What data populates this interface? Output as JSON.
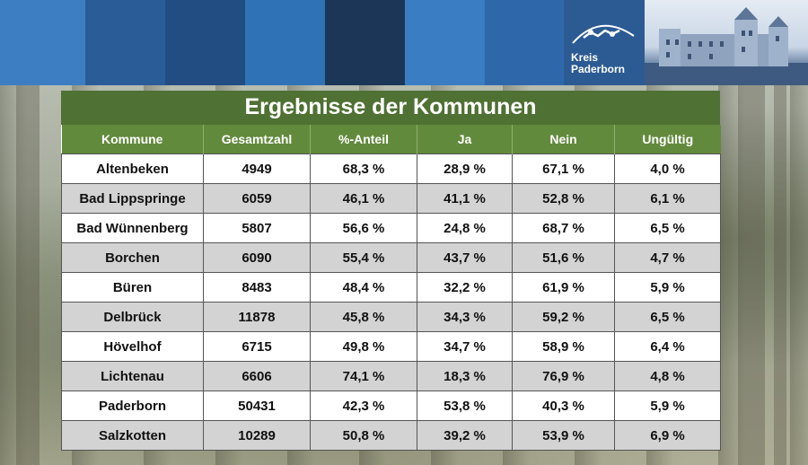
{
  "header": {
    "stripe_colors": [
      "#3d7ec2",
      "#2a5c98",
      "#214d82",
      "#2f73b6",
      "#1c3658",
      "#3a7dc2",
      "#2f68aa"
    ],
    "logo_text": "Kreis\nPaderborn",
    "logo_bg": "#2c5b94"
  },
  "title": "Ergebnisse der Kommunen",
  "columns": [
    "Kommune",
    "Gesamtzahl",
    "%-Anteil",
    "Ja",
    "Nein",
    "Ungültig"
  ],
  "rows": [
    [
      "Altenbeken",
      "4949",
      "68,3 %",
      "28,9 %",
      "67,1 %",
      "4,0 %"
    ],
    [
      "Bad Lippspringe",
      "6059",
      "46,1 %",
      "41,1 %",
      "52,8 %",
      "6,1 %"
    ],
    [
      "Bad Wünnenberg",
      "5807",
      "56,6 %",
      "24,8 %",
      "68,7 %",
      "6,5 %"
    ],
    [
      "Borchen",
      "6090",
      "55,4 %",
      "43,7 %",
      "51,6 %",
      "4,7 %"
    ],
    [
      "Büren",
      "8483",
      "48,4 %",
      "32,2 %",
      "61,9 %",
      "5,9 %"
    ],
    [
      "Delbrück",
      "11878",
      "45,8 %",
      "34,3 %",
      "59,2 %",
      "6,5 %"
    ],
    [
      "Hövelhof",
      "6715",
      "49,8 %",
      "34,7 %",
      "58,9 %",
      "6,4 %"
    ],
    [
      "Lichtenau",
      "6606",
      "74,1 %",
      "18,3 %",
      "76,9 %",
      "4,8 %"
    ],
    [
      "Paderborn",
      "50431",
      "42,3 %",
      "53,8 %",
      "40,3 %",
      "5,9 %"
    ],
    [
      "Salzkotten",
      "10289",
      "50,8 %",
      "39,2 %",
      "53,9 %",
      "6,9 %"
    ]
  ]
}
